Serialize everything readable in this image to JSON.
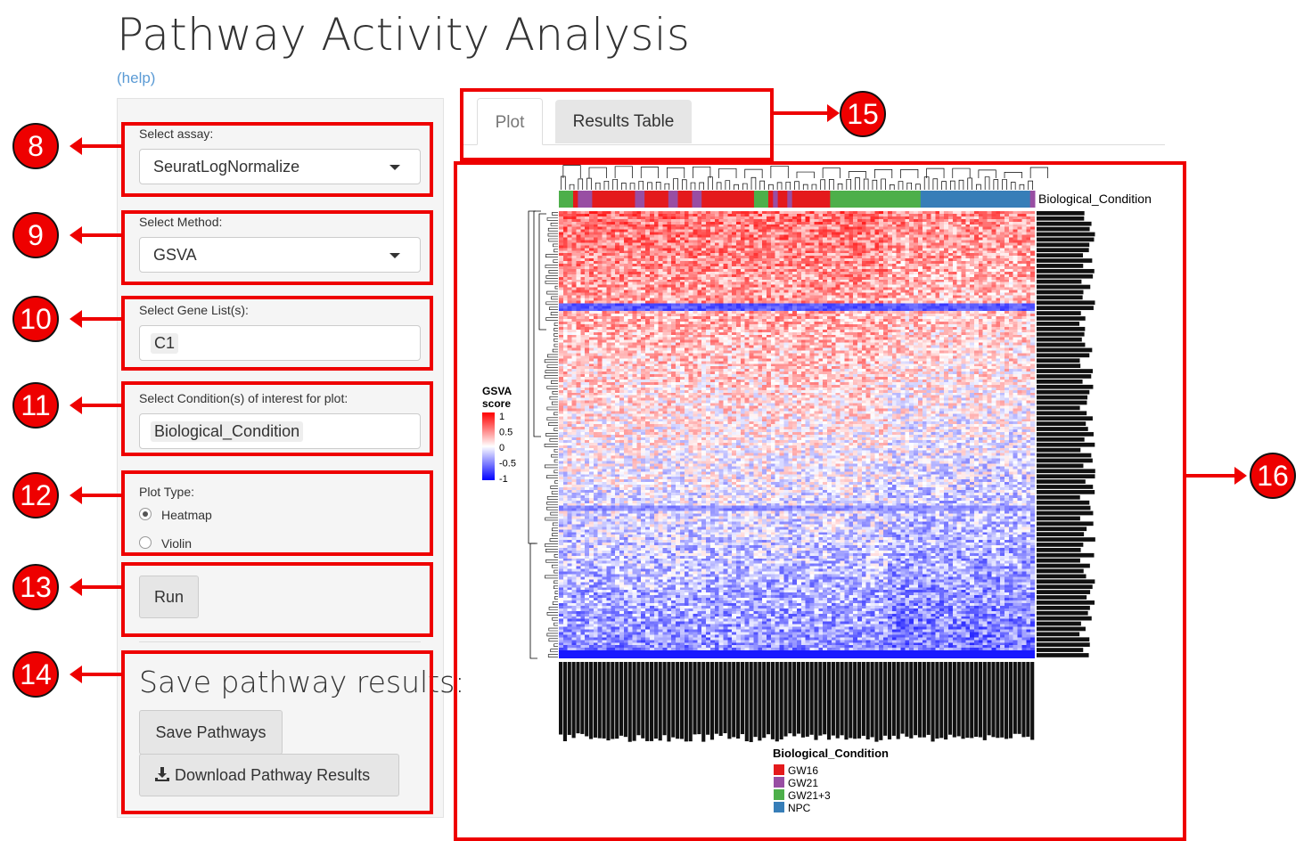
{
  "page": {
    "title": "Pathway Activity Analysis",
    "help_link": "(help)"
  },
  "sidebar": {
    "assay": {
      "label": "Select assay:",
      "value": "SeuratLogNormalize"
    },
    "method": {
      "label": "Select Method:",
      "value": "GSVA"
    },
    "gene_lists": {
      "label": "Select Gene List(s):",
      "value": "C1"
    },
    "conditions": {
      "label": "Select Condition(s) of interest for plot:",
      "value": "Biological_Condition"
    },
    "plot_type": {
      "label": "Plot Type:",
      "options": [
        "Heatmap",
        "Violin"
      ],
      "selected": "Heatmap"
    },
    "run_button": "Run",
    "save_section": {
      "heading": "Save pathway results:",
      "save_button": "Save Pathways",
      "download_button": "Download Pathway Results"
    }
  },
  "tabs": [
    {
      "label": "Plot",
      "active": true
    },
    {
      "label": "Results Table",
      "active": false
    }
  ],
  "callouts": [
    "8",
    "9",
    "10",
    "11",
    "12",
    "13",
    "14",
    "15",
    "16"
  ],
  "heatmap": {
    "annotation_label": "Biological_Condition",
    "legend_title_line1": "GSVA",
    "legend_title_line2": "score",
    "scale_ticks": [
      "1",
      "0.5",
      "0",
      "-0.5",
      "-1"
    ],
    "condition_legend_title": "Biological_Condition",
    "conditions": [
      {
        "name": "GW16",
        "color": "#e41a1c"
      },
      {
        "name": "GW21",
        "color": "#984ea3"
      },
      {
        "name": "GW21+3",
        "color": "#4daf4a"
      },
      {
        "name": "NPC",
        "color": "#377eb8"
      }
    ],
    "colors": {
      "high": "#ff0000",
      "mid": "#ffffff",
      "low": "#0000ff"
    }
  }
}
